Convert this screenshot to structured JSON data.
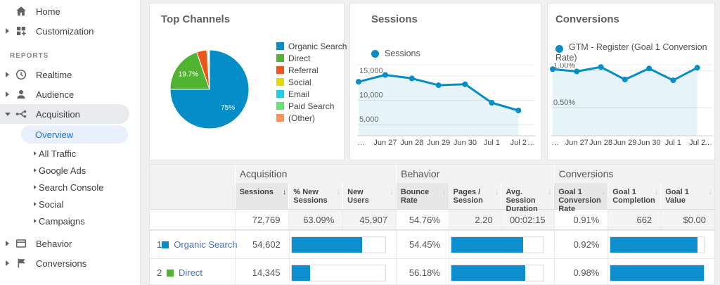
{
  "colors": {
    "accent_blue": "#058dc7",
    "link_blue": "#4472d9",
    "selected_nav_blue": "#1a73e8",
    "sidebar_icon_gray": "#5f6368"
  },
  "sidebar": {
    "section_label": "REPORTS",
    "items": [
      {
        "label": "Home"
      },
      {
        "label": "Customization"
      },
      {
        "label": "Realtime"
      },
      {
        "label": "Audience"
      },
      {
        "label": "Acquisition",
        "expanded": true,
        "active": true
      },
      {
        "label": "Behavior"
      },
      {
        "label": "Conversions"
      }
    ],
    "acquisition_children": [
      {
        "label": "Overview",
        "selected": true
      },
      {
        "label": "All Traffic"
      },
      {
        "label": "Google Ads"
      },
      {
        "label": "Search Console"
      },
      {
        "label": "Social"
      },
      {
        "label": "Campaigns"
      }
    ]
  },
  "cards": {
    "top_channels": {
      "title": "Top Channels"
    },
    "sessions": {
      "title": "Sessions",
      "legend_label": "Sessions"
    },
    "conversions": {
      "title": "Conversions",
      "legend_label": "GTM - Register (Goal 1 Conversion Rate)"
    }
  },
  "chart_data": [
    {
      "type": "pie",
      "title": "Top Channels",
      "labels": [
        "Organic Search",
        "Direct",
        "Referral",
        "Social",
        "Email",
        "Paid Search",
        "(Other)"
      ],
      "values": [
        75,
        19.7,
        4.2,
        0.6,
        0.2,
        0.15,
        0.15
      ],
      "slice_labels": [
        "75%",
        "19.7%",
        "",
        "",
        "",
        "",
        ""
      ],
      "colors": [
        "#058dc7",
        "#50b432",
        "#ed561b",
        "#e3d800",
        "#24cbe5",
        "#64e572",
        "#ff9655"
      ],
      "legend_position": "right"
    },
    {
      "type": "line",
      "title": "Sessions",
      "x": [
        "…",
        "Jun 27",
        "Jun 28",
        "Jun 29",
        "Jun 30",
        "Jul 1",
        "Jul 2",
        "…"
      ],
      "series": [
        {
          "name": "Sessions",
          "values": [
            13800,
            15200,
            14500,
            13100,
            13300,
            9500,
            7900
          ]
        }
      ],
      "y_ticks": [
        5000,
        10000,
        15000
      ],
      "y_tick_labels": [
        "5,000",
        "10,000",
        "15,000"
      ],
      "ylim": [
        2700,
        17300
      ],
      "grid": true,
      "area_fill": true,
      "line_color": "#058dc7"
    },
    {
      "type": "line",
      "title": "Conversions",
      "x": [
        "…",
        "Jun 27",
        "Jun 28",
        "Jun 29",
        "Jun 30",
        "Jul 1",
        "Jul 2",
        "…"
      ],
      "series": [
        {
          "name": "GTM - Register (Goal 1 Conversion Rate)",
          "values": [
            1.02,
            0.99,
            1.05,
            0.88,
            1.03,
            0.87,
            1.04
          ]
        }
      ],
      "y_ticks": [
        0.5,
        1.0
      ],
      "y_tick_labels": [
        "0.50%",
        "1.00%"
      ],
      "ylim": [
        0.12,
        1.08
      ],
      "grid": true,
      "area_fill": true,
      "line_color": "#058dc7"
    }
  ],
  "table": {
    "groups": [
      {
        "label": "Acquisition"
      },
      {
        "label": "Behavior"
      },
      {
        "label": "Conversions"
      }
    ],
    "columns": [
      {
        "label": "Sessions",
        "sort": "desc"
      },
      {
        "label": "% New Sessions",
        "sort": "none"
      },
      {
        "label": "New Users",
        "sort": "none"
      },
      {
        "label": "Bounce Rate",
        "sort": "none"
      },
      {
        "label": "Pages / Session",
        "sort": "none"
      },
      {
        "label": "Avg. Session Duration",
        "sort": "none"
      },
      {
        "label": "Goal 1 Conversion Rate",
        "sort": "none"
      },
      {
        "label": "Goal 1 Completion",
        "sort": "none"
      },
      {
        "label": "Goal 1 Value",
        "sort": "none"
      }
    ],
    "totals": [
      "72,769",
      "63.09%",
      "45,907",
      "54.76%",
      "2.20",
      "00:02:15",
      "0.91%",
      "662",
      "$0.00"
    ],
    "rows": [
      {
        "rank": "1",
        "channel": "Organic Search",
        "swatch_color": "#058dc7",
        "sessions": "54,602",
        "sessions_bar_pct": 75,
        "bounce_rate": "54.45%",
        "bounce_bar_pct": 77.8,
        "goal_conversion_rate": "0.92%",
        "goal_bar_pct": 93.5
      },
      {
        "rank": "2",
        "channel": "Direct",
        "swatch_color": "#50b432",
        "sessions": "14,345",
        "sessions_bar_pct": 19.7,
        "bounce_rate": "56.18%",
        "bounce_bar_pct": 80.3,
        "goal_conversion_rate": "0.98%",
        "goal_bar_pct": 100
      }
    ]
  }
}
